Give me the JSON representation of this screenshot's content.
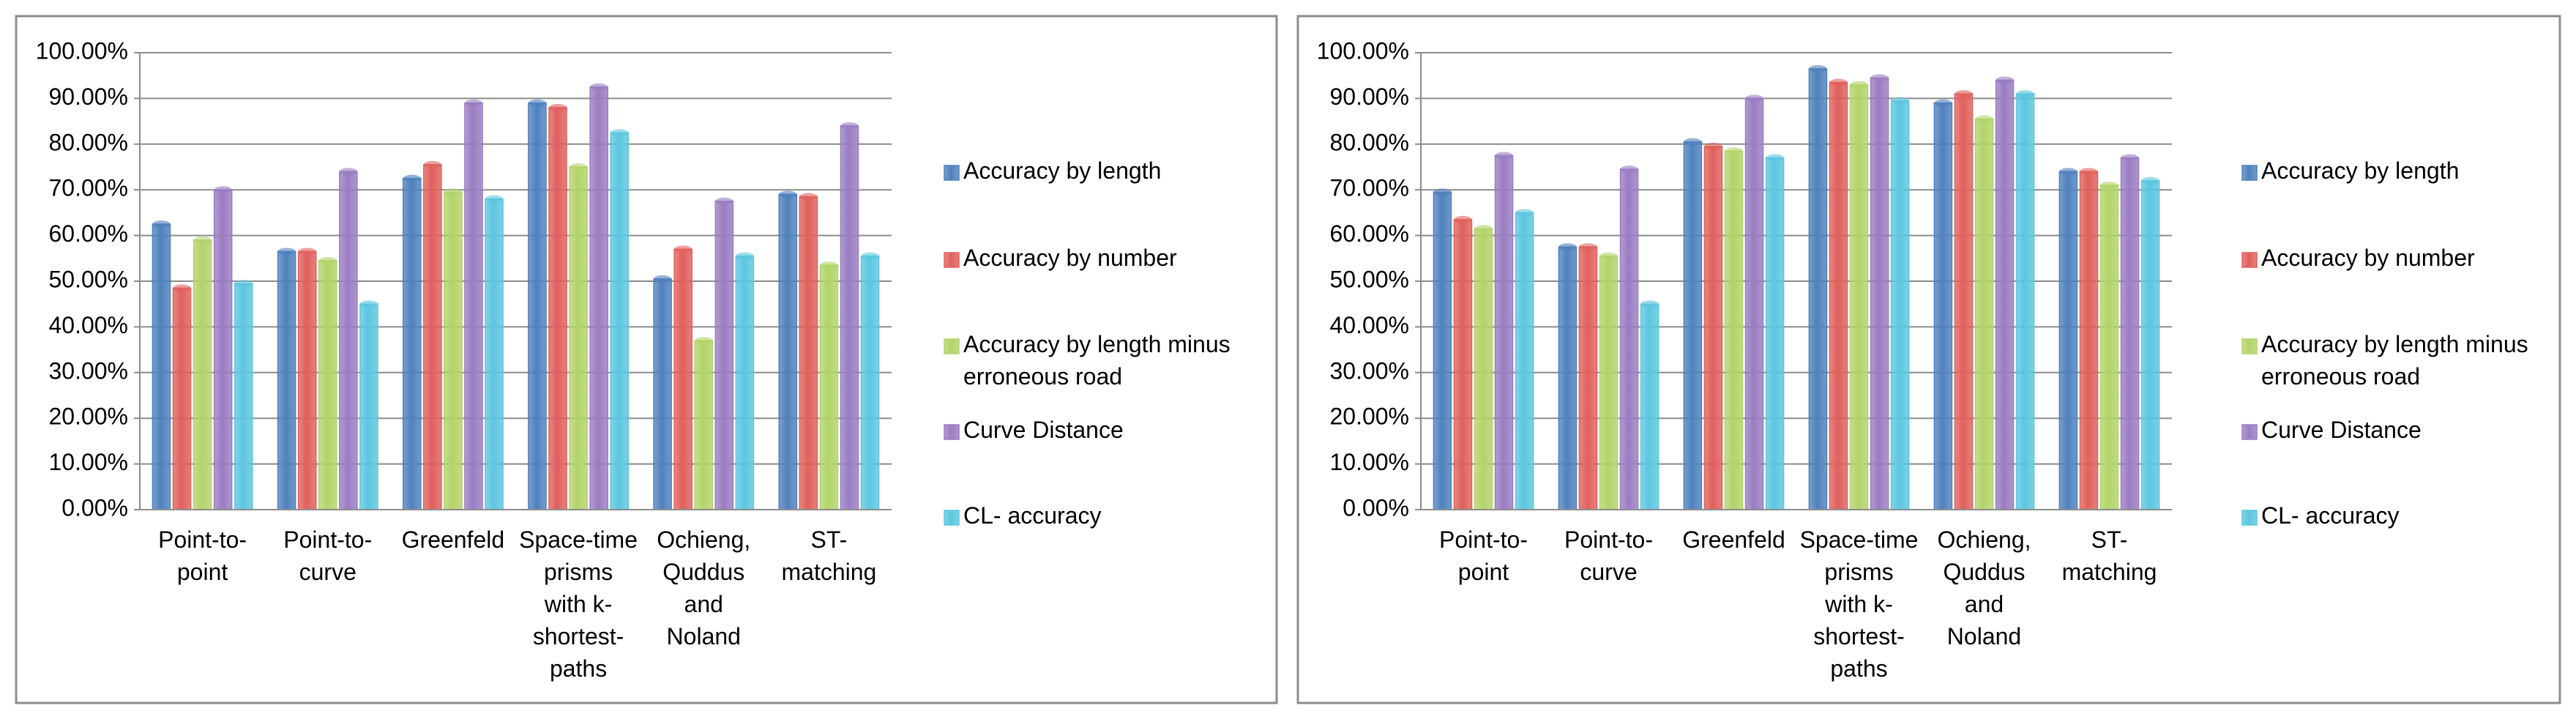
{
  "chart_data": [
    {
      "type": "bar",
      "categories": [
        "Point-to-point",
        "Point-to-curve",
        "Greenfeld",
        "Space-time prisms with k-shortest-paths",
        "Ochieng, Quddus and Noland",
        "ST-matching"
      ],
      "series": [
        {
          "name": "Accuracy by length",
          "color": "#4f81bd",
          "values": [
            62.5,
            56.5,
            72.5,
            89,
            50.5,
            69
          ]
        },
        {
          "name": "Accuracy by number",
          "color": "#e0605c",
          "values": [
            48.5,
            56.5,
            75.5,
            88,
            57,
            68.5
          ]
        },
        {
          "name": "Accuracy by length minus erroneous road",
          "color": "#b3d36a",
          "values": [
            59,
            54.5,
            69.5,
            75,
            37,
            53.5
          ]
        },
        {
          "name": "Curve Distance",
          "color": "#9a7cc2",
          "values": [
            70,
            74,
            89,
            92.5,
            67.5,
            84
          ]
        },
        {
          "name": "CL- accuracy",
          "color": "#5cc6e0",
          "values": [
            49.5,
            45,
            68,
            82.5,
            55.5,
            55.5
          ]
        }
      ],
      "ylim": [
        0,
        100
      ],
      "yticks": [
        {
          "value": 0,
          "label": "0.00%"
        },
        {
          "value": 10,
          "label": "10.00%"
        },
        {
          "value": 20,
          "label": "20.00%"
        },
        {
          "value": 30,
          "label": "30.00%"
        },
        {
          "value": 40,
          "label": "40.00%"
        },
        {
          "value": 50,
          "label": "50.00%"
        },
        {
          "value": 60,
          "label": "60.00%"
        },
        {
          "value": 70,
          "label": "70.00%"
        },
        {
          "value": 80,
          "label": "80.00%"
        },
        {
          "value": 90,
          "label": "90.00%"
        },
        {
          "value": 100,
          "label": "100.00%"
        }
      ],
      "grid": true,
      "legend": "right"
    },
    {
      "type": "bar",
      "categories": [
        "Point-to-point",
        "Point-to-curve",
        "Greenfeld",
        "Space-time prisms with k-shortest-paths",
        "Ochieng, Quddus and Noland",
        "ST-matching"
      ],
      "series": [
        {
          "name": "Accuracy by length",
          "color": "#4f81bd",
          "values": [
            69.5,
            57.5,
            80.5,
            96.5,
            89,
            74
          ]
        },
        {
          "name": "Accuracy by number",
          "color": "#e0605c",
          "values": [
            63.5,
            57.5,
            79.5,
            93.5,
            91,
            74
          ]
        },
        {
          "name": "Accuracy by length minus erroneous road",
          "color": "#b3d36a",
          "values": [
            61.5,
            55.5,
            78.5,
            93,
            85.5,
            71
          ]
        },
        {
          "name": "Curve Distance",
          "color": "#9a7cc2",
          "values": [
            77.5,
            74.5,
            90,
            94.5,
            94,
            77
          ]
        },
        {
          "name": "CL- accuracy",
          "color": "#5cc6e0",
          "values": [
            65,
            45,
            77,
            89.5,
            91,
            72
          ]
        }
      ],
      "ylim": [
        0,
        100
      ],
      "yticks": [
        {
          "value": 0,
          "label": "0.00%"
        },
        {
          "value": 10,
          "label": "10.00%"
        },
        {
          "value": 20,
          "label": "20.00%"
        },
        {
          "value": 30,
          "label": "30.00%"
        },
        {
          "value": 40,
          "label": "40.00%"
        },
        {
          "value": 50,
          "label": "50.00%"
        },
        {
          "value": 60,
          "label": "60.00%"
        },
        {
          "value": 70,
          "label": "70.00%"
        },
        {
          "value": 80,
          "label": "80.00%"
        },
        {
          "value": 90,
          "label": "90.00%"
        },
        {
          "value": 100,
          "label": "100.00%"
        }
      ],
      "grid": true,
      "legend": "right"
    }
  ]
}
